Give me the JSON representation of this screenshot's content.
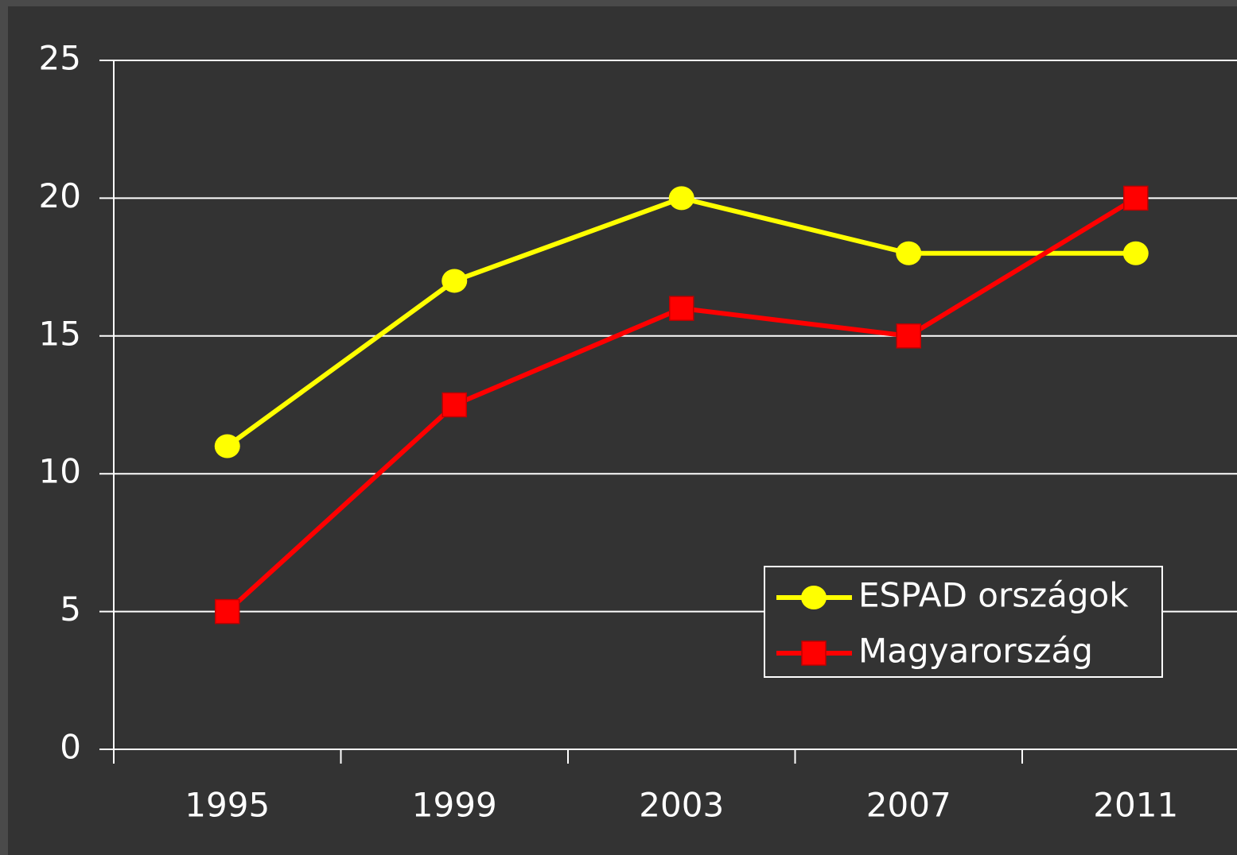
{
  "chart_data": {
    "type": "line",
    "categories": [
      "1995",
      "1999",
      "2003",
      "2007",
      "2011"
    ],
    "series": [
      {
        "name": "ESPAD országok",
        "color": "#ffff00",
        "marker": "circle",
        "values": [
          11,
          17,
          20,
          18,
          18
        ]
      },
      {
        "name": "Magyarország",
        "color": "#ff0000",
        "marker": "square",
        "values": [
          5,
          12.5,
          16,
          15,
          20
        ]
      }
    ],
    "ylim": [
      0,
      25
    ],
    "yticks": [
      0,
      5,
      10,
      15,
      20,
      25
    ],
    "grid": true,
    "legend": "lower right"
  }
}
